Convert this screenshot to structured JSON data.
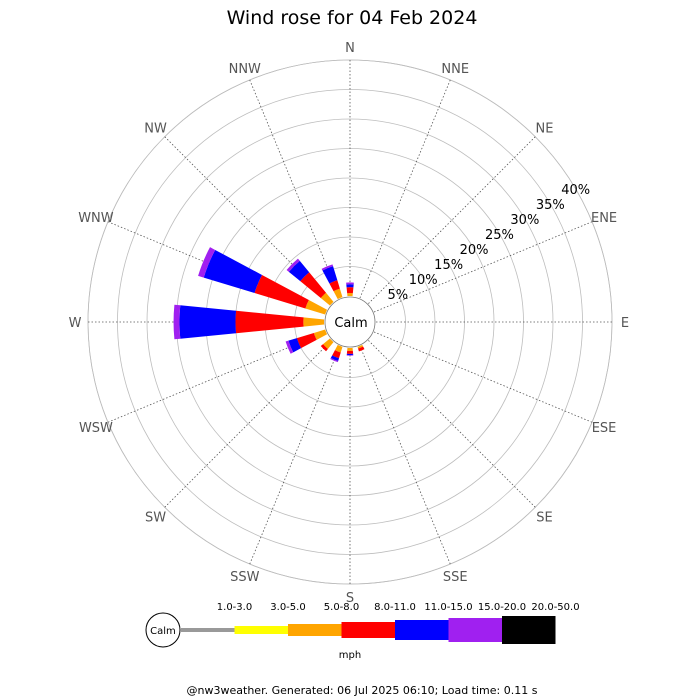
{
  "header": {
    "title": "Wind rose for 04 Feb 2024"
  },
  "footer": {
    "text": "@nw3weather. Generated: 06 Jul 2025 06:10; Load time: 0.11 s"
  },
  "calm": {
    "label": "Calm"
  },
  "legend": {
    "units": "mph",
    "calm_label": "Calm",
    "bins": [
      {
        "label": "1.0-3.0",
        "color": "#999999"
      },
      {
        "label": "3.0-5.0",
        "color": "#ffff00"
      },
      {
        "label": "5.0-8.0",
        "color": "#ffa500"
      },
      {
        "label": "8.0-11.0",
        "color": "#ff0000"
      },
      {
        "label": "11.0-15.0",
        "color": "#0000ff"
      },
      {
        "label": "15.0-20.0",
        "color": "#a020f0"
      },
      {
        "label": "20.0-50.0",
        "color": "#000000"
      }
    ]
  },
  "chart_data": {
    "type": "bar",
    "subtype": "wind-rose",
    "title": "Wind rose for 04 Feb 2024",
    "units": "mph",
    "radial_ticks": [
      "5%",
      "10%",
      "15%",
      "20%",
      "25%",
      "30%",
      "35%",
      "40%"
    ],
    "radial_max": 40,
    "directions": [
      "N",
      "NNE",
      "NE",
      "ENE",
      "E",
      "ESE",
      "SE",
      "SSE",
      "S",
      "SSW",
      "SW",
      "WSW",
      "W",
      "WNW",
      "NW",
      "NNW"
    ],
    "speed_bins": [
      "1.0-3.0",
      "3.0-5.0",
      "5.0-8.0",
      "8.0-11.0",
      "11.0-15.0",
      "15.0-20.0",
      "20.0-50.0"
    ],
    "series": [
      {
        "name": "1.0-3.0",
        "values": [
          0,
          0,
          0,
          0,
          0,
          0,
          0,
          0,
          0,
          0,
          0,
          0,
          0,
          0,
          0,
          0
        ]
      },
      {
        "name": "3.0-5.0",
        "values": [
          0,
          0,
          0,
          0,
          0,
          0,
          0,
          0,
          0,
          0,
          0,
          0,
          0,
          0,
          0,
          0
        ]
      },
      {
        "name": "5.0-8.0",
        "values": [
          0.5,
          0,
          0,
          0,
          0,
          0,
          0,
          0.3,
          0.5,
          1.0,
          1.5,
          2.0,
          3.5,
          3.5,
          2.0,
          1.5
        ]
      },
      {
        "name": "8.0-11.0",
        "values": [
          1.0,
          0,
          0,
          0,
          0,
          0,
          0,
          0.5,
          0.5,
          1.0,
          0.5,
          3.0,
          11.5,
          9.0,
          4.5,
          1.5
        ]
      },
      {
        "name": "11.0-15.0",
        "values": [
          0.5,
          0,
          0,
          0,
          0,
          0,
          0,
          0,
          0.2,
          0.5,
          0,
          1.5,
          9.5,
          9.0,
          2.5,
          2.5
        ]
      },
      {
        "name": "15.0-20.0",
        "values": [
          0.3,
          0,
          0,
          0,
          0,
          0,
          0,
          0,
          0.1,
          0.2,
          0,
          0.5,
          1.0,
          1.0,
          0.5,
          0.3
        ]
      },
      {
        "name": "20.0-50.0",
        "values": [
          0,
          0,
          0,
          0,
          0,
          0,
          0,
          0,
          0,
          0,
          0,
          0,
          0,
          0,
          0,
          0
        ]
      }
    ],
    "grid": true
  }
}
